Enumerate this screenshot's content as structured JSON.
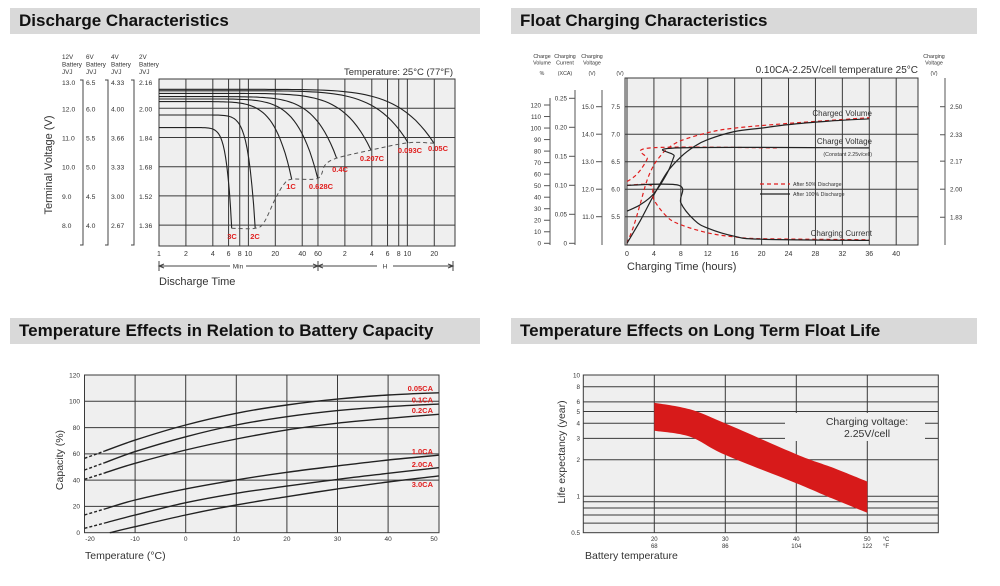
{
  "colors": {
    "header_bg": "#d9d9d9",
    "plot_bg": "#efefef",
    "grid": "#3a3a3a",
    "accent_red": "#e01e1e",
    "band_red": "#d71a1a"
  },
  "chart_data": [
    {
      "type": "line",
      "title": "Discharge Characteristics",
      "annotation": "Temperature: 25°C (77°F)",
      "xlabel": "Discharge Time",
      "ylabel": "Terminal Voltage (V)",
      "x_scale": "log",
      "grid": true,
      "xlim_minutes": [
        1,
        2000
      ],
      "ylim": [
        7.3,
        13.0
      ],
      "x_ticks": [
        {
          "minutes": 1,
          "label": "1"
        },
        {
          "minutes": 2,
          "label": "2"
        },
        {
          "minutes": 4,
          "label": "4"
        },
        {
          "minutes": 6,
          "label": "6"
        },
        {
          "minutes": 8,
          "label": "8"
        },
        {
          "minutes": 10,
          "label": "10"
        },
        {
          "minutes": 20,
          "label": "20"
        },
        {
          "minutes": 40,
          "label": "40"
        },
        {
          "minutes": 60,
          "label": "60"
        },
        {
          "minutes": 120,
          "label": "2"
        },
        {
          "minutes": 240,
          "label": "4"
        },
        {
          "minutes": 360,
          "label": "6"
        },
        {
          "minutes": 480,
          "label": "8"
        },
        {
          "minutes": 600,
          "label": "10"
        },
        {
          "minutes": 1200,
          "label": "20"
        }
      ],
      "x_ranges": [
        {
          "label": "Min"
        },
        {
          "label": "H"
        }
      ],
      "y_tick_values": [
        13,
        12,
        11,
        10,
        9,
        8
      ],
      "y_axes": [
        {
          "header": [
            "12V",
            "Battery",
            "JVJ"
          ],
          "ticks": [
            "13.0",
            "12.0",
            "11.0",
            "10.0",
            "9.0",
            "8.0"
          ]
        },
        {
          "header": [
            "6V",
            "Battery",
            "JVJ"
          ],
          "ticks": [
            "6.5",
            "6.0",
            "5.5",
            "5.0",
            "4.5",
            "4.0"
          ]
        },
        {
          "header": [
            "4V",
            "Battery",
            "JVJ"
          ],
          "ticks": [
            "4.33",
            "4.00",
            "3.66",
            "3.33",
            "3.00",
            "2.67"
          ]
        },
        {
          "header": [
            "2V",
            "Battery",
            "JVJ"
          ],
          "ticks": [
            "2.16",
            "2.00",
            "1.84",
            "1.68",
            "1.52",
            "1.36"
          ]
        }
      ],
      "series": [
        {
          "name": "3C",
          "start_v": 11.34,
          "end_minutes": 6.5,
          "end_v": 7.89
        },
        {
          "name": "2C",
          "start_v": 11.77,
          "end_minutes": 11.9,
          "end_v": 7.89
        },
        {
          "name": "1C",
          "start_v": 12.23,
          "end_minutes": 30.5,
          "end_v": 9.57
        },
        {
          "name": "0.628C",
          "start_v": 12.32,
          "end_minutes": 59.6,
          "end_v": 9.6
        },
        {
          "name": "0.4C",
          "start_v": 12.4,
          "end_minutes": 97,
          "end_v": 10.29
        },
        {
          "name": "0.207C",
          "start_v": 12.51,
          "end_minutes": 235,
          "end_v": 10.57
        },
        {
          "name": "0.093C",
          "start_v": 12.6,
          "end_minutes": 611,
          "end_v": 10.82
        },
        {
          "name": "0.05C",
          "start_v": 12.65,
          "end_minutes": 1191,
          "end_v": 10.8
        }
      ],
      "cutoff_curve": [
        [
          6.5,
          7.89
        ],
        [
          11.9,
          7.89
        ],
        [
          15,
          8.1
        ],
        [
          20,
          8.9
        ],
        [
          25,
          9.4
        ],
        [
          30.5,
          9.57
        ],
        [
          59.6,
          9.6
        ],
        [
          72,
          10.05
        ],
        [
          97,
          10.29
        ],
        [
          235,
          10.57
        ],
        [
          611,
          10.82
        ],
        [
          1191,
          10.8
        ]
      ]
    },
    {
      "type": "line",
      "title": "Float Charging Characteristics",
      "subtitle": "0.10CA-2.25V/cell  temperature 25°C",
      "xlabel": "Charging Time (hours)",
      "grid": true,
      "xlim": [
        0,
        43
      ],
      "x_ticks": [
        0,
        4,
        8,
        12,
        16,
        20,
        24,
        28,
        32,
        36,
        40
      ],
      "axes": {
        "volume": {
          "header": [
            "Charge",
            "Volume",
            "%"
          ],
          "ticks": [
            0,
            10,
            20,
            30,
            40,
            50,
            60,
            70,
            80,
            90,
            100,
            110,
            120
          ]
        },
        "current": {
          "header": [
            "Charging",
            "Current",
            "(XCA)"
          ],
          "ticks": [
            "0",
            "0.05",
            "0.10",
            "0.15",
            "0.20",
            "0.25"
          ]
        },
        "voltage_12v": {
          "header": [
            "Charging",
            "Voltage",
            "(V)"
          ],
          "ticks": [
            "11.0",
            "12.0",
            "13.0",
            "14.0",
            "15.0"
          ]
        },
        "voltage_6v": {
          "header": "(V)",
          "ticks": [
            "5.5",
            "6.0",
            "6.5",
            "7.0",
            "7.5"
          ]
        },
        "voltage_cell": {
          "header": [
            "Charging",
            "Voltage",
            "(V)"
          ],
          "ticks": [
            "1.83",
            "2.00",
            "2.17",
            "2.33",
            "2.50"
          ]
        }
      },
      "curve_labels": {
        "volume": "Charged Volume",
        "voltage": "Charge Voltage",
        "voltage_note": "(Constant 2.25v/cell)",
        "current": "Charging Current"
      },
      "legend": [
        {
          "label": "After  50% Discharge",
          "style": "dashed",
          "color": "#e01e1e"
        },
        {
          "label": "After 100% Discharge",
          "style": "solid",
          "color": "#222222"
        }
      ],
      "series": [
        {
          "quantity": "volume",
          "legend": 0,
          "points": [
            [
              0,
              0
            ],
            [
              1,
              15
            ],
            [
              2,
              35
            ],
            [
              3,
              55
            ],
            [
              4,
              68
            ],
            [
              5,
              76
            ],
            [
              6,
              82
            ],
            [
              8,
              89
            ],
            [
              12,
              96
            ],
            [
              16,
              100
            ],
            [
              24,
              104
            ],
            [
              36,
              109
            ]
          ]
        },
        {
          "quantity": "volume",
          "legend": 1,
          "points": [
            [
              0,
              0
            ],
            [
              2,
              20
            ],
            [
              4,
              42
            ],
            [
              6,
              62
            ],
            [
              8,
              75
            ],
            [
              10,
              84
            ],
            [
              12,
              90
            ],
            [
              16,
              97
            ],
            [
              20,
              100
            ],
            [
              24,
              103
            ],
            [
              30,
              106
            ],
            [
              36,
              108
            ]
          ]
        },
        {
          "quantity": "voltage",
          "legend": 0,
          "points": [
            [
              0,
              6.14
            ],
            [
              1,
              6.22
            ],
            [
              2,
              6.35
            ],
            [
              3,
              6.55
            ],
            [
              3.5,
              6.75
            ],
            [
              22.5,
              6.75
            ]
          ]
        },
        {
          "quantity": "voltage",
          "legend": 1,
          "points": [
            [
              0,
              5.6
            ],
            [
              2,
              5.72
            ],
            [
              4,
              5.92
            ],
            [
              6,
              6.3
            ],
            [
              7,
              6.6
            ],
            [
              7.5,
              6.75
            ],
            [
              36,
              6.75
            ]
          ]
        },
        {
          "quantity": "current",
          "legend": 0,
          "points": [
            [
              0,
              0.1
            ],
            [
              3.5,
              0.1
            ],
            [
              4,
              0.075
            ],
            [
              6,
              0.045
            ],
            [
              8,
              0.032
            ],
            [
              12,
              0.018
            ],
            [
              16,
              0.011
            ],
            [
              20,
              0.008
            ],
            [
              36,
              0.006
            ]
          ]
        },
        {
          "quantity": "current",
          "legend": 1,
          "points": [
            [
              0,
              0.1
            ],
            [
              7.7,
              0.1
            ],
            [
              8,
              0.07
            ],
            [
              10,
              0.04
            ],
            [
              12,
              0.026
            ],
            [
              16,
              0.012
            ],
            [
              20,
              0.007
            ],
            [
              36,
              0.005
            ]
          ]
        }
      ]
    },
    {
      "type": "line",
      "title": "Temperature Effects in Relation to Battery Capacity",
      "xlabel": "Temperature (°C)",
      "ylabel": "Capacity (%)",
      "grid": true,
      "xlim": [
        -20,
        50
      ],
      "ylim": [
        0,
        120
      ],
      "x_ticks": [
        -20,
        -10,
        0,
        10,
        20,
        30,
        40,
        50
      ],
      "y_ticks": [
        0,
        20,
        40,
        60,
        80,
        100,
        120
      ],
      "dashed_below": -16,
      "series": [
        {
          "name": "0.05CA",
          "points": [
            [
              -20,
              56.6
            ],
            [
              -10,
              70.5
            ],
            [
              0,
              82
            ],
            [
              10,
              90.9
            ],
            [
              20,
              97.2
            ],
            [
              30,
              101.7
            ],
            [
              40,
              104.8
            ],
            [
              50,
              106.5
            ]
          ]
        },
        {
          "name": "0.1CA",
          "points": [
            [
              -20,
              47.7
            ],
            [
              -10,
              61.7
            ],
            [
              0,
              73
            ],
            [
              10,
              82
            ],
            [
              20,
              88.3
            ],
            [
              30,
              92.9
            ],
            [
              40,
              95.9
            ],
            [
              50,
              97.9
            ]
          ]
        },
        {
          "name": "0.2CA",
          "points": [
            [
              -20,
              40.6
            ],
            [
              -10,
              52.8
            ],
            [
              0,
              62.9
            ],
            [
              10,
              71.3
            ],
            [
              20,
              78.2
            ],
            [
              30,
              83.3
            ],
            [
              40,
              87
            ],
            [
              50,
              90.1
            ]
          ]
        },
        {
          "name": "1.0CA",
          "points": [
            [
              -20,
              13.5
            ],
            [
              -10,
              24.9
            ],
            [
              0,
              33.3
            ],
            [
              10,
              40.2
            ],
            [
              20,
              46
            ],
            [
              30,
              50.8
            ],
            [
              40,
              55.3
            ],
            [
              50,
              59
            ]
          ]
        },
        {
          "name": "2.0CA",
          "points": [
            [
              -20,
              3.3
            ],
            [
              -10,
              13.5
            ],
            [
              0,
              22.8
            ],
            [
              10,
              30
            ],
            [
              20,
              35.5
            ],
            [
              30,
              40.6
            ],
            [
              40,
              45.2
            ],
            [
              50,
              49.5
            ]
          ]
        },
        {
          "name": "3.0CA",
          "points": [
            [
              -15,
              0
            ],
            [
              -10,
              4.6
            ],
            [
              0,
              13.5
            ],
            [
              10,
              21.1
            ],
            [
              20,
              27.4
            ],
            [
              30,
              33.3
            ],
            [
              40,
              38.6
            ],
            [
              50,
              43.2
            ]
          ]
        }
      ]
    },
    {
      "type": "area",
      "title": "Temperature Effects on Long Term Float Life",
      "xlabel": "Battery temperature",
      "ylabel": "Life expectancy (year)",
      "y_scale": "log",
      "grid": true,
      "xlim": [
        10,
        60
      ],
      "ylim": [
        0.5,
        10
      ],
      "y_ticks": [
        {
          "value": 10,
          "label": "10"
        },
        {
          "value": 8,
          "label": "8"
        },
        {
          "value": 6,
          "label": "6"
        },
        {
          "value": 5,
          "label": "5"
        },
        {
          "value": 4,
          "label": "4"
        },
        {
          "value": 3,
          "label": "3"
        },
        {
          "value": 2,
          "label": "2"
        },
        {
          "value": 1,
          "label": "1"
        },
        {
          "value": 0.5,
          "label": "0.5"
        }
      ],
      "y_grid": [
        10,
        8,
        6,
        5,
        4,
        3,
        2,
        1,
        0.9,
        0.8,
        0.7,
        0.6
      ],
      "x_ticks": [
        {
          "c": "20",
          "f": "68"
        },
        {
          "c": "30",
          "f": "86"
        },
        {
          "c": "40",
          "f": "104"
        },
        {
          "c": "50",
          "f": "122"
        }
      ],
      "x_units": {
        "c": "°C",
        "f": "°F"
      },
      "annotation": [
        "Charging voltage:",
        "2.25V/cell"
      ],
      "band": {
        "upper": [
          [
            20,
            5.91
          ],
          [
            25,
            5.21
          ],
          [
            30,
            3.99
          ],
          [
            40,
            2.22
          ],
          [
            45,
            1.73
          ],
          [
            50,
            1.32
          ]
        ],
        "lower": [
          [
            20,
            3.47
          ],
          [
            25,
            3.1
          ],
          [
            30,
            2.19
          ],
          [
            40,
            1.28
          ],
          [
            45,
            0.96
          ],
          [
            50,
            0.73
          ]
        ]
      }
    }
  ]
}
